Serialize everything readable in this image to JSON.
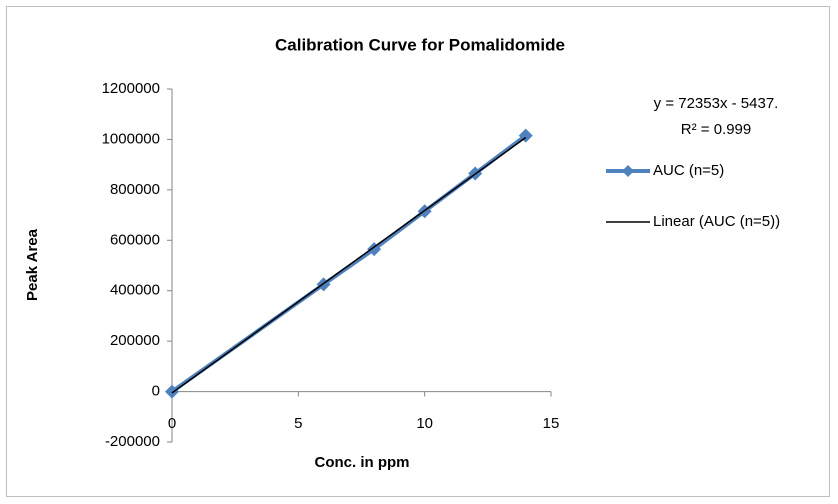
{
  "chart_data": {
    "type": "scatter",
    "title": "Calibration Curve for Pomalidomide",
    "x_label": "Conc. in ppm",
    "y_label": "Peak Area",
    "x": [
      0,
      6,
      8,
      10,
      12,
      14
    ],
    "series": [
      {
        "name": "AUC (n=5)",
        "color": "#4f81bd",
        "values": [
          0,
          425000,
          565000,
          715000,
          865000,
          1015000
        ]
      },
      {
        "name": "Linear (AUC (n=5))",
        "color": "#000000",
        "x": [
          0,
          14
        ],
        "values": [
          -5437,
          1007505
        ]
      }
    ],
    "annotations": [
      "y = 72353x - 5437.",
      "R² = 0.999"
    ],
    "xlim": [
      0,
      15
    ],
    "xticks": [
      0,
      5,
      10,
      15
    ],
    "ylim": [
      -200000,
      1200000
    ],
    "yticks": [
      -200000,
      0,
      200000,
      400000,
      600000,
      800000,
      1000000,
      1200000
    ],
    "grid": false,
    "legend": "right"
  }
}
